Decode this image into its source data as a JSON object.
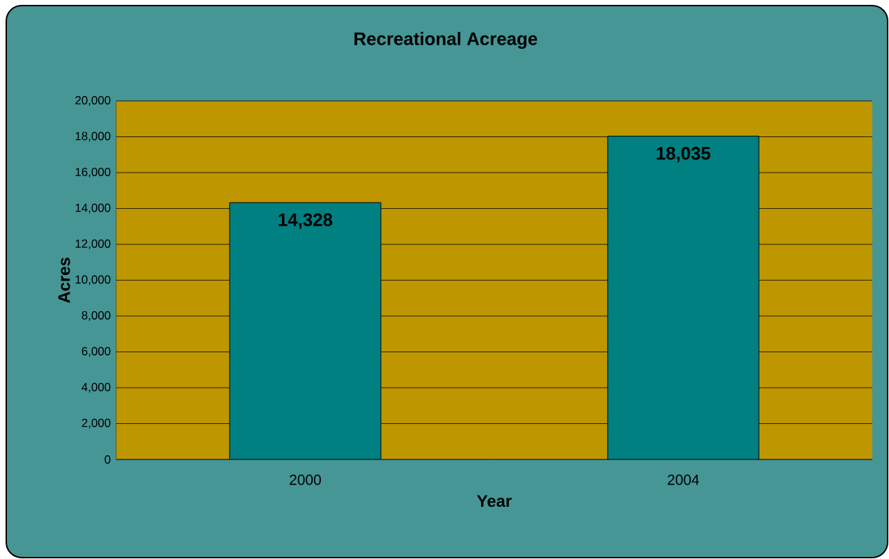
{
  "chart_data": {
    "type": "bar",
    "title": "Recreational Acreage",
    "xlabel": "Year",
    "ylabel": "Acres",
    "categories": [
      "2000",
      "2004"
    ],
    "values": [
      14328,
      18035
    ],
    "value_labels": [
      "14,328",
      "18,035"
    ],
    "color": "#008080",
    "ylim": [
      0,
      20000
    ],
    "yticks": [
      {
        "value": 0,
        "label": "0"
      },
      {
        "value": 2000,
        "label": "2,000"
      },
      {
        "value": 4000,
        "label": "4,000"
      },
      {
        "value": 6000,
        "label": "6,000"
      },
      {
        "value": 8000,
        "label": "8,000"
      },
      {
        "value": 10000,
        "label": "10,000"
      },
      {
        "value": 12000,
        "label": "12,000"
      },
      {
        "value": 14000,
        "label": "14,000"
      },
      {
        "value": 16000,
        "label": "16,000"
      },
      {
        "value": 18000,
        "label": "18,000"
      },
      {
        "value": 20000,
        "label": "20,000"
      }
    ],
    "grid": "y"
  }
}
